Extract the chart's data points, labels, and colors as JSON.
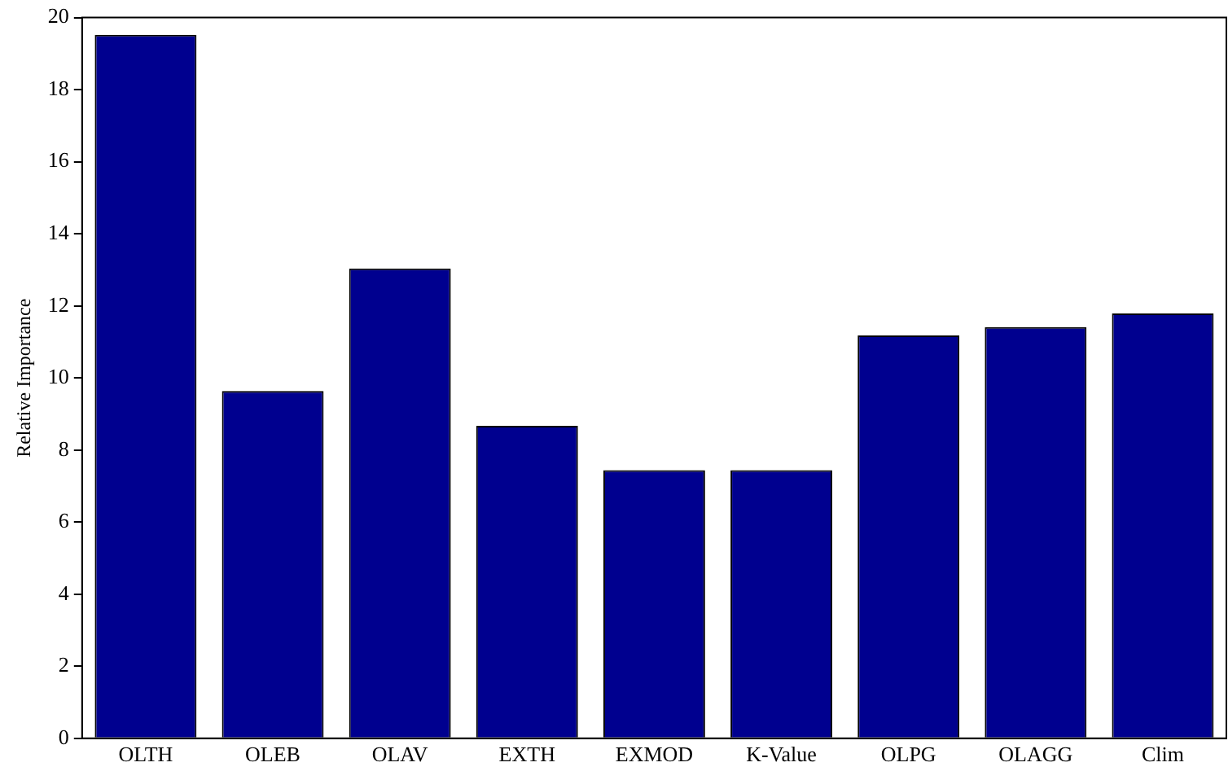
{
  "chart_data": {
    "type": "bar",
    "ylabel": "Relative Importance",
    "categories": [
      "OLTH",
      "OLEB",
      "OLAV",
      "EXTH",
      "EXMOD",
      "K-Value",
      "OLPG",
      "OLAGG",
      "Clim"
    ],
    "values": [
      19.52,
      9.64,
      13.04,
      8.67,
      7.44,
      7.44,
      11.18,
      11.41,
      11.79
    ],
    "color": "#00008f",
    "ylim": [
      0,
      20
    ],
    "yticks": [
      0,
      2,
      4,
      6,
      8,
      10,
      12,
      14,
      16,
      18,
      20
    ],
    "grid": false,
    "legend": false
  }
}
